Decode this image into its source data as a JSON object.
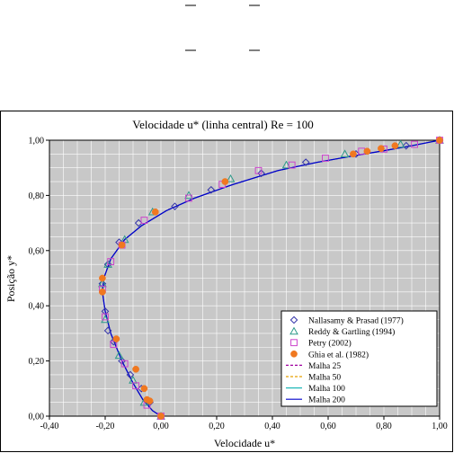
{
  "chart_data": {
    "type": "line",
    "title": "Velocidade u* (linha central) Re = 100",
    "xlabel": "Velocidade u*",
    "ylabel": "Posição y*",
    "xlim": [
      -0.4,
      1.0
    ],
    "ylim": [
      0.0,
      1.0
    ],
    "x_ticks": [
      "-0,40",
      "-0,20",
      "0,00",
      "0,20",
      "0,40",
      "0,60",
      "0,80",
      "1,00"
    ],
    "y_ticks": [
      "0,00",
      "0,20",
      "0,40",
      "0,60",
      "0,80",
      "1,00"
    ],
    "grid": true,
    "legend_position": "bottom-right",
    "colors": {
      "plot_bg": "#c8c8c8",
      "nallasamy": "#3333aa",
      "reddy": "#2e9a8a",
      "petry": "#cc44cc",
      "ghia": "#f07820",
      "malha25": "#a000a0",
      "malha50": "#e8a000",
      "malha100": "#20b8b8",
      "malha200": "#0000cc"
    },
    "series": [
      {
        "name": "Nallasamy & Prasad (1977)",
        "marker": "diamond",
        "color": "#3333aa",
        "points": [
          [
            0.0,
            0.0
          ],
          [
            -0.04,
            0.05
          ],
          [
            -0.07,
            0.1
          ],
          [
            -0.11,
            0.15
          ],
          [
            -0.14,
            0.2
          ],
          [
            -0.17,
            0.27
          ],
          [
            -0.19,
            0.31
          ],
          [
            -0.2,
            0.38
          ],
          [
            -0.21,
            0.48
          ],
          [
            -0.19,
            0.55
          ],
          [
            -0.15,
            0.63
          ],
          [
            -0.08,
            0.7
          ],
          [
            0.05,
            0.76
          ],
          [
            0.18,
            0.82
          ],
          [
            0.36,
            0.88
          ],
          [
            0.52,
            0.92
          ],
          [
            0.7,
            0.95
          ],
          [
            0.88,
            0.98
          ],
          [
            1.0,
            1.0
          ]
        ]
      },
      {
        "name": "Reddy & Gartling (1994)",
        "marker": "triangle",
        "color": "#2e9a8a",
        "points": [
          [
            0.0,
            0.0
          ],
          [
            -0.06,
            0.05
          ],
          [
            -0.1,
            0.13
          ],
          [
            -0.15,
            0.22
          ],
          [
            -0.2,
            0.35
          ],
          [
            -0.21,
            0.48
          ],
          [
            -0.19,
            0.55
          ],
          [
            -0.13,
            0.64
          ],
          [
            -0.03,
            0.74
          ],
          [
            0.1,
            0.8
          ],
          [
            0.25,
            0.86
          ],
          [
            0.45,
            0.91
          ],
          [
            0.66,
            0.95
          ],
          [
            0.86,
            0.985
          ],
          [
            1.0,
            1.0
          ]
        ]
      },
      {
        "name": "Petry (2002)",
        "marker": "square",
        "color": "#cc44cc",
        "points": [
          [
            0.0,
            0.0
          ],
          [
            -0.05,
            0.04
          ],
          [
            -0.09,
            0.11
          ],
          [
            -0.13,
            0.19
          ],
          [
            -0.17,
            0.26
          ],
          [
            -0.2,
            0.36
          ],
          [
            -0.21,
            0.46
          ],
          [
            -0.18,
            0.56
          ],
          [
            -0.14,
            0.62
          ],
          [
            -0.06,
            0.71
          ],
          [
            0.1,
            0.79
          ],
          [
            0.22,
            0.84
          ],
          [
            0.35,
            0.89
          ],
          [
            0.47,
            0.91
          ],
          [
            0.59,
            0.935
          ],
          [
            0.72,
            0.96
          ],
          [
            0.8,
            0.968
          ],
          [
            0.91,
            0.985
          ],
          [
            1.0,
            1.0
          ]
        ]
      },
      {
        "name": "Ghia et al. (1982)",
        "marker": "circle",
        "color": "#f07820",
        "points": [
          [
            0.0,
            0.0
          ],
          [
            -0.04,
            0.055
          ],
          [
            -0.05,
            0.06
          ],
          [
            -0.06,
            0.1
          ],
          [
            -0.09,
            0.17
          ],
          [
            -0.16,
            0.28
          ],
          [
            -0.21,
            0.45
          ],
          [
            -0.21,
            0.5
          ],
          [
            -0.14,
            0.62
          ],
          [
            -0.02,
            0.74
          ],
          [
            0.23,
            0.85
          ],
          [
            0.69,
            0.95
          ],
          [
            0.74,
            0.96
          ],
          [
            0.79,
            0.97
          ],
          [
            0.84,
            0.98
          ],
          [
            1.0,
            1.0
          ]
        ]
      },
      {
        "name": "Malha 25",
        "style": "dashed",
        "color": "#a000a0",
        "points": [
          [
            0.0,
            0.0
          ],
          [
            -0.03,
            0.02
          ],
          [
            -0.065,
            0.06
          ],
          [
            -0.1,
            0.12
          ],
          [
            -0.14,
            0.2
          ],
          [
            -0.18,
            0.3
          ],
          [
            -0.2,
            0.38
          ],
          [
            -0.21,
            0.45
          ],
          [
            -0.205,
            0.5
          ],
          [
            -0.18,
            0.57
          ],
          [
            -0.13,
            0.64
          ],
          [
            -0.07,
            0.69
          ],
          [
            0.02,
            0.745
          ],
          [
            0.12,
            0.79
          ],
          [
            0.26,
            0.84
          ],
          [
            0.42,
            0.89
          ],
          [
            0.56,
            0.92
          ],
          [
            0.7,
            0.945
          ],
          [
            0.8,
            0.962
          ],
          [
            0.9,
            0.98
          ],
          [
            1.0,
            1.0
          ]
        ]
      },
      {
        "name": "Malha 50",
        "style": "dashed",
        "color": "#e8a000",
        "points": [
          [
            0.0,
            0.0
          ],
          [
            -0.03,
            0.02
          ],
          [
            -0.065,
            0.06
          ],
          [
            -0.1,
            0.12
          ],
          [
            -0.14,
            0.2
          ],
          [
            -0.18,
            0.3
          ],
          [
            -0.2,
            0.38
          ],
          [
            -0.21,
            0.45
          ],
          [
            -0.205,
            0.5
          ],
          [
            -0.18,
            0.57
          ],
          [
            -0.13,
            0.64
          ],
          [
            -0.07,
            0.69
          ],
          [
            0.02,
            0.745
          ],
          [
            0.12,
            0.79
          ],
          [
            0.26,
            0.84
          ],
          [
            0.42,
            0.89
          ],
          [
            0.56,
            0.92
          ],
          [
            0.7,
            0.945
          ],
          [
            0.8,
            0.962
          ],
          [
            0.9,
            0.98
          ],
          [
            1.0,
            1.0
          ]
        ]
      },
      {
        "name": "Malha 100",
        "style": "solid",
        "color": "#20b8b8",
        "points": [
          [
            0.0,
            0.0
          ],
          [
            -0.03,
            0.02
          ],
          [
            -0.065,
            0.06
          ],
          [
            -0.1,
            0.12
          ],
          [
            -0.14,
            0.2
          ],
          [
            -0.18,
            0.3
          ],
          [
            -0.2,
            0.38
          ],
          [
            -0.21,
            0.45
          ],
          [
            -0.205,
            0.5
          ],
          [
            -0.18,
            0.57
          ],
          [
            -0.13,
            0.64
          ],
          [
            -0.07,
            0.69
          ],
          [
            0.02,
            0.745
          ],
          [
            0.12,
            0.79
          ],
          [
            0.26,
            0.84
          ],
          [
            0.42,
            0.89
          ],
          [
            0.56,
            0.92
          ],
          [
            0.7,
            0.945
          ],
          [
            0.8,
            0.962
          ],
          [
            0.9,
            0.98
          ],
          [
            1.0,
            1.0
          ]
        ]
      },
      {
        "name": "Malha 200",
        "style": "solid",
        "color": "#0000cc",
        "points": [
          [
            0.0,
            0.0
          ],
          [
            -0.03,
            0.02
          ],
          [
            -0.065,
            0.06
          ],
          [
            -0.1,
            0.12
          ],
          [
            -0.14,
            0.2
          ],
          [
            -0.18,
            0.3
          ],
          [
            -0.2,
            0.38
          ],
          [
            -0.21,
            0.45
          ],
          [
            -0.205,
            0.5
          ],
          [
            -0.18,
            0.57
          ],
          [
            -0.13,
            0.64
          ],
          [
            -0.07,
            0.69
          ],
          [
            0.02,
            0.745
          ],
          [
            0.12,
            0.79
          ],
          [
            0.26,
            0.84
          ],
          [
            0.42,
            0.89
          ],
          [
            0.56,
            0.92
          ],
          [
            0.7,
            0.945
          ],
          [
            0.8,
            0.962
          ],
          [
            0.9,
            0.98
          ],
          [
            1.0,
            1.0
          ]
        ]
      }
    ]
  }
}
